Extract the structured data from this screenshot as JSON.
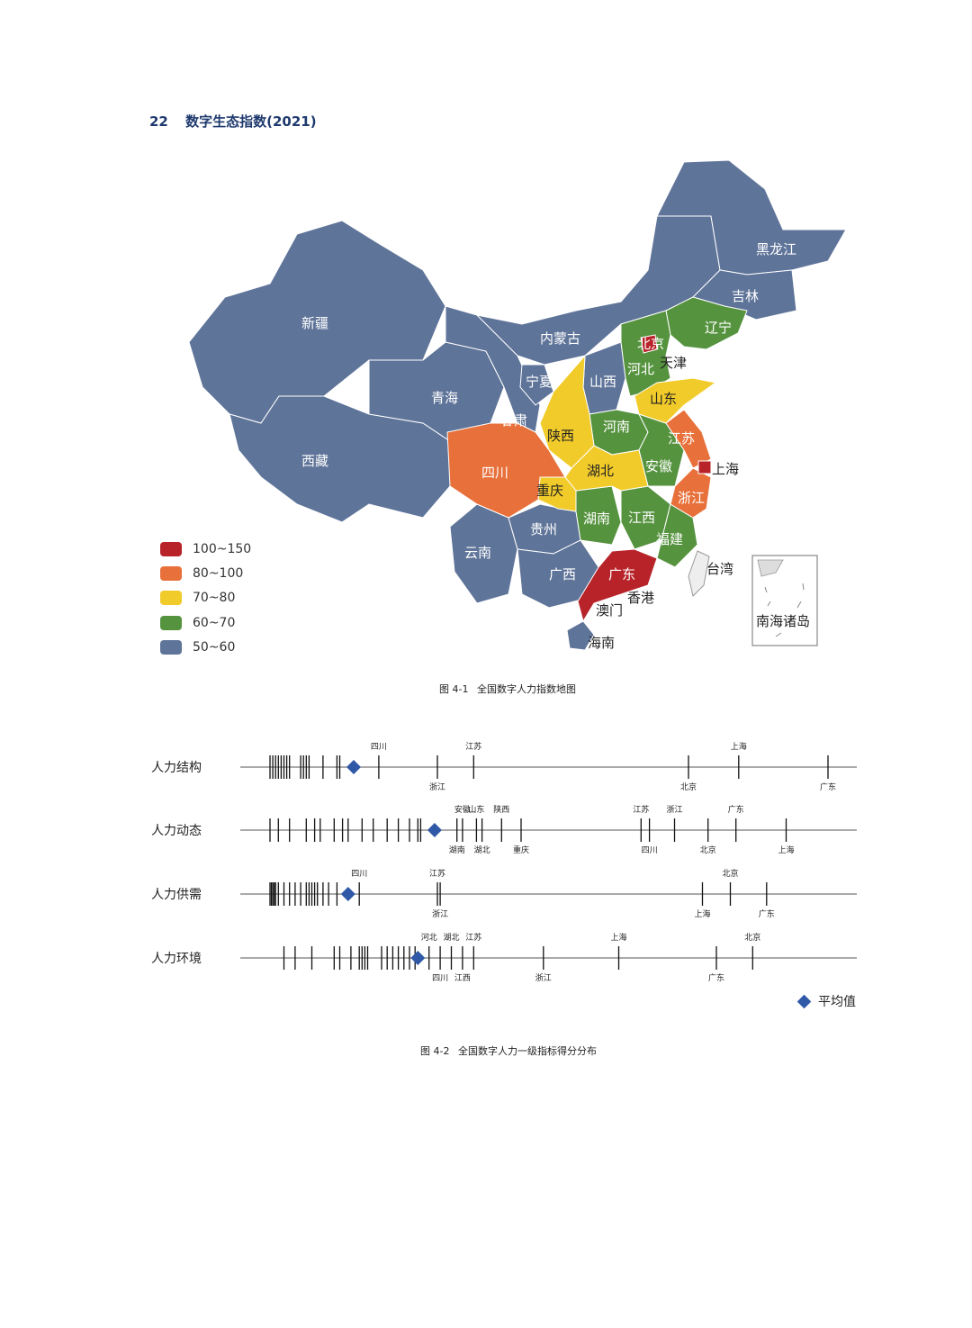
{
  "page": {
    "number": "22",
    "title": "数字生态指数(2021)"
  },
  "colors": {
    "c100_150": "#b8232a",
    "c80_100": "#e8703a",
    "c70_80": "#f1cb2a",
    "c60_70": "#56933f",
    "c50_60": "#5f7499",
    "avg": "#2f58a6"
  },
  "map": {
    "provinces": {
      "xinjiang": "新疆",
      "xizang": "西藏",
      "qinghai": "青海",
      "gansu": "甘肃",
      "neimenggu": "内蒙古",
      "heilongjiang": "黑龙江",
      "jilin": "吉林",
      "liaoning": "辽宁",
      "beijing": "北京",
      "tianjin": "天津",
      "hebei": "河北",
      "shanxi": "山西",
      "ningxia": "宁夏",
      "shaanxi": "陕西",
      "shandong": "山东",
      "henan": "河南",
      "jiangsu": "江苏",
      "shanghai": "上海",
      "anhui": "安徽",
      "hubei": "湖北",
      "sichuan": "四川",
      "chongqing": "重庆",
      "zhejiang": "浙江",
      "hunan": "湖南",
      "jiangxi": "江西",
      "guizhou": "贵州",
      "fujian": "福建",
      "yunnan": "云南",
      "guangxi": "广西",
      "guangdong": "广东",
      "taiwan": "台湾",
      "xianggang": "香港",
      "aomen": "澳门",
      "hainan": "海南",
      "nanhai": "南海诸岛"
    },
    "legend": [
      {
        "label": "100~150",
        "color": "#b8232a"
      },
      {
        "label": "80~100",
        "color": "#e8703a"
      },
      {
        "label": "70~80",
        "color": "#f1cb2a"
      },
      {
        "label": "60~70",
        "color": "#56933f"
      },
      {
        "label": "50~60",
        "color": "#5f7499"
      }
    ],
    "caption": {
      "fig": "图 4-1",
      "text": "全国数字人力指数地图"
    }
  },
  "chart_data": {
    "type": "strip",
    "rows": [
      {
        "name": "人力结构",
        "unlabeled": [
          0.05,
          0.06,
          0.07,
          0.08,
          0.09,
          0.1,
          0.11,
          0.12,
          0.16,
          0.17,
          0.18,
          0.19,
          0.24,
          0.29,
          0.3
        ],
        "average": 0.35,
        "marks": [
          {
            "x": 0.44,
            "label": "四川",
            "pos": "above"
          },
          {
            "x": 0.65,
            "label": "浙江",
            "pos": "below"
          },
          {
            "x": 0.78,
            "label": "江苏",
            "pos": "above"
          },
          {
            "x": 1.55,
            "label": "北京",
            "pos": "below"
          },
          {
            "x": 1.73,
            "label": "上海",
            "pos": "above"
          },
          {
            "x": 2.05,
            "label": "广东",
            "pos": "below"
          }
        ]
      },
      {
        "name": "人力动态",
        "unlabeled": [
          0.05,
          0.08,
          0.12,
          0.18,
          0.21,
          0.23,
          0.28,
          0.31,
          0.33,
          0.38,
          0.42,
          0.47,
          0.51,
          0.55,
          0.58,
          0.59
        ],
        "average": 0.64,
        "marks": [
          {
            "x": 0.72,
            "label": "湖南",
            "pos": "below"
          },
          {
            "x": 0.74,
            "label": "安徽",
            "pos": "above"
          },
          {
            "x": 0.79,
            "label": "山东",
            "pos": "above"
          },
          {
            "x": 0.81,
            "label": "湖北",
            "pos": "below"
          },
          {
            "x": 0.88,
            "label": "陕西",
            "pos": "above"
          },
          {
            "x": 0.95,
            "label": "重庆",
            "pos": "below"
          },
          {
            "x": 1.38,
            "label": "江苏",
            "pos": "above"
          },
          {
            "x": 1.41,
            "label": "四川",
            "pos": "below"
          },
          {
            "x": 1.5,
            "label": "浙江",
            "pos": "above"
          },
          {
            "x": 1.62,
            "label": "北京",
            "pos": "below"
          },
          {
            "x": 1.72,
            "label": "广东",
            "pos": "above"
          },
          {
            "x": 1.9,
            "label": "上海",
            "pos": "below"
          }
        ]
      },
      {
        "name": "人力供需",
        "unlabeled": [
          0.05,
          0.055,
          0.06,
          0.065,
          0.07,
          0.08,
          0.1,
          0.12,
          0.14,
          0.16,
          0.18,
          0.19,
          0.2,
          0.21,
          0.22,
          0.24,
          0.26,
          0.29
        ],
        "average": 0.33,
        "marks": [
          {
            "x": 0.37,
            "label": "四川",
            "pos": "above"
          },
          {
            "x": 0.65,
            "label": "江苏",
            "pos": "above"
          },
          {
            "x": 0.66,
            "label": "浙江",
            "pos": "below"
          },
          {
            "x": 1.6,
            "label": "上海",
            "pos": "below"
          },
          {
            "x": 1.7,
            "label": "北京",
            "pos": "above"
          },
          {
            "x": 1.83,
            "label": "广东",
            "pos": "below"
          }
        ]
      },
      {
        "name": "人力环境",
        "unlabeled": [
          0.1,
          0.14,
          0.2,
          0.28,
          0.3,
          0.34,
          0.37,
          0.38,
          0.39,
          0.4,
          0.45,
          0.47,
          0.49,
          0.51,
          0.53,
          0.55,
          0.57
        ],
        "average": 0.58,
        "marks": [
          {
            "x": 0.62,
            "label": "河北",
            "pos": "above"
          },
          {
            "x": 0.66,
            "label": "四川",
            "pos": "below"
          },
          {
            "x": 0.7,
            "label": "湖北",
            "pos": "above"
          },
          {
            "x": 0.74,
            "label": "江西",
            "pos": "below"
          },
          {
            "x": 0.78,
            "label": "江苏",
            "pos": "above"
          },
          {
            "x": 1.03,
            "label": "浙江",
            "pos": "below"
          },
          {
            "x": 1.3,
            "label": "上海",
            "pos": "above"
          },
          {
            "x": 1.65,
            "label": "广东",
            "pos": "below"
          },
          {
            "x": 1.78,
            "label": "北京",
            "pos": "above"
          }
        ]
      }
    ],
    "legend": {
      "label": "平均值",
      "placement": "bottom-right"
    }
  },
  "strip_caption": {
    "fig": "图 4-2",
    "text": "全国数字人力一级指标得分分布"
  }
}
